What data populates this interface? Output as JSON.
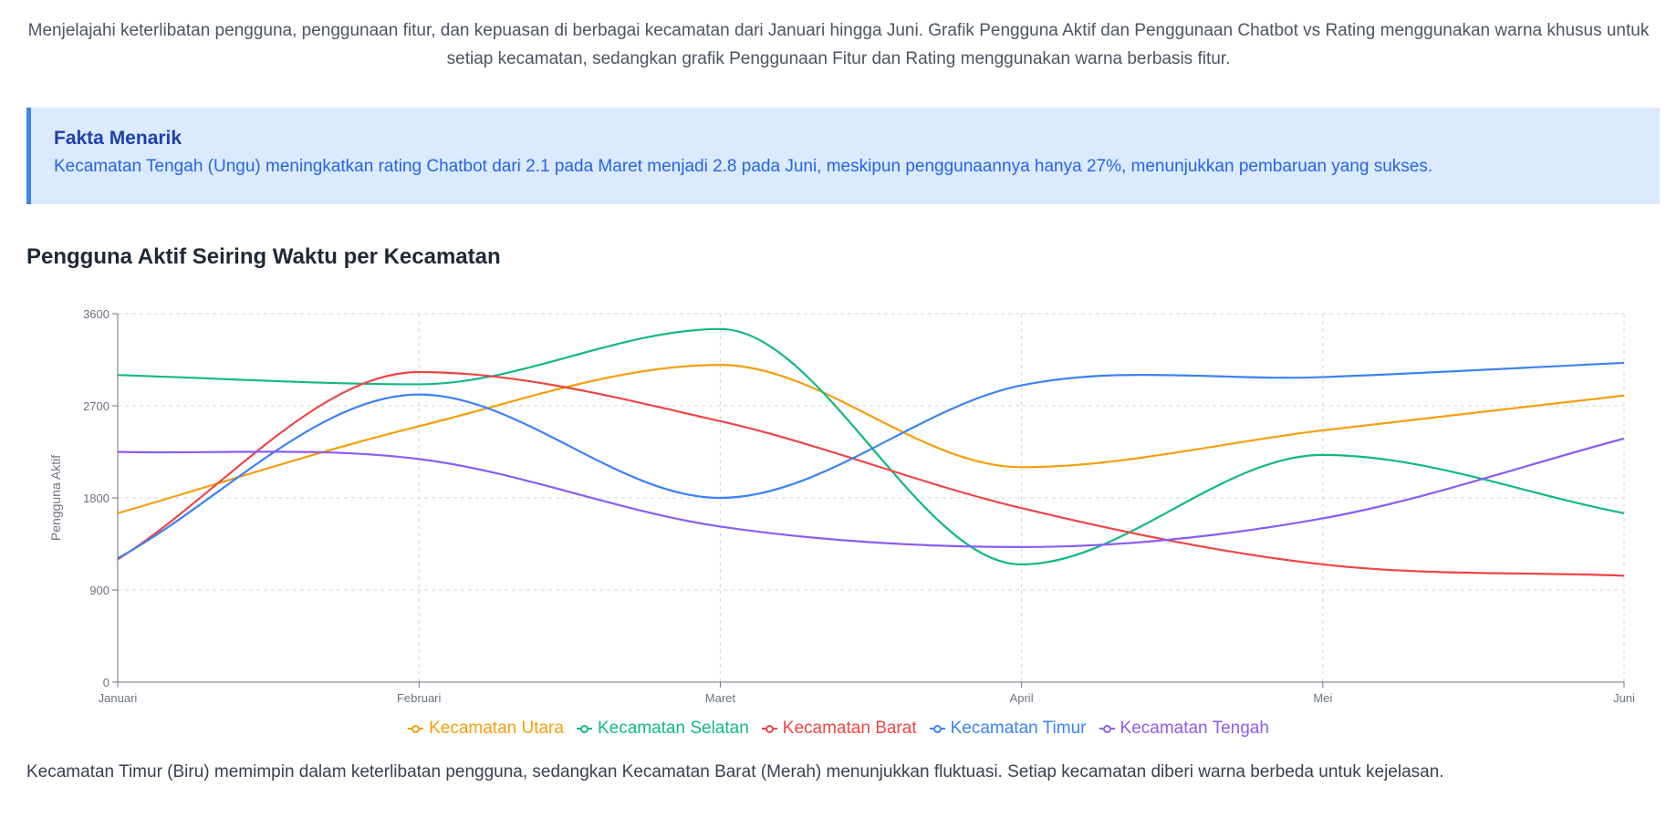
{
  "intro": "Menjelajahi keterlibatan pengguna, penggunaan fitur, dan kepuasan di berbagai kecamatan dari Januari hingga Juni. Grafik Pengguna Aktif dan Penggunaan Chatbot vs Rating menggunakan warna khusus untuk setiap kecamatan, sedangkan grafik Penggunaan Fitur dan Rating menggunakan warna berbasis fitur.",
  "fact": {
    "title": "Fakta Menarik",
    "text": "Kecamatan Tengah (Ungu) meningkatkan rating Chatbot dari 2.1 pada Maret menjadi 2.8 pada Juni, meskipun penggunaannya hanya 27%, menunjukkan pembaruan yang sukses."
  },
  "chart_title": "Pengguna Aktif Seiring Waktu per Kecamatan",
  "caption": "Kecamatan Timur (Biru) memimpin dalam keterlibatan pengguna, sedangkan Kecamatan Barat (Merah) menunjukkan fluktuasi. Setiap kecamatan diberi warna berbeda untuk kejelasan.",
  "chart_data": {
    "type": "line",
    "categories": [
      "Januari",
      "Februari",
      "Maret",
      "April",
      "Mei",
      "Juni"
    ],
    "ylabel": "Pengguna Aktif",
    "ylim": [
      0,
      3600
    ],
    "yticks": [
      0,
      900,
      1800,
      2700,
      3600
    ],
    "grid": true,
    "legend_position": "bottom",
    "series": [
      {
        "name": "Kecamatan Utara",
        "color": "#f59e0b",
        "values": [
          1650,
          2500,
          3100,
          2100,
          2460,
          2800
        ]
      },
      {
        "name": "Kecamatan Selatan",
        "color": "#10b981",
        "values": [
          3000,
          2910,
          3450,
          1150,
          2220,
          1650
        ]
      },
      {
        "name": "Kecamatan Barat",
        "color": "#ef4444",
        "values": [
          1200,
          3030,
          2550,
          1700,
          1150,
          1040
        ]
      },
      {
        "name": "Kecamatan Timur",
        "color": "#3b82f6",
        "values": [
          1210,
          2810,
          1800,
          2900,
          2980,
          3120
        ]
      },
      {
        "name": "Kecamatan Tengah",
        "color": "#8b5cf6",
        "values": [
          2250,
          2180,
          1520,
          1320,
          1600,
          2380
        ]
      }
    ]
  }
}
